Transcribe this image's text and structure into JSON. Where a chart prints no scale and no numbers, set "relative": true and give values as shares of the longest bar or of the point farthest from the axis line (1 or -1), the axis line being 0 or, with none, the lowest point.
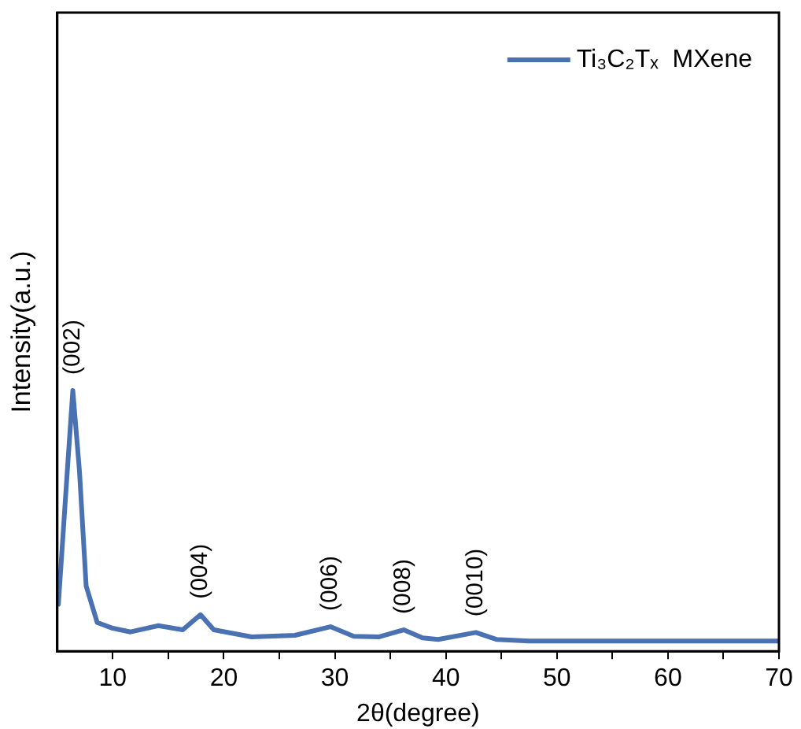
{
  "chart_data": {
    "type": "line",
    "xlabel": "2θ(degree)",
    "ylabel": "Intensity(a.u.)",
    "relative": true,
    "x": [
      5.1,
      5.9,
      6.4,
      7.0,
      7.6,
      8.6,
      10.0,
      11.6,
      14.1,
      16.3,
      17.9,
      19.1,
      22.5,
      26.4,
      29.6,
      31.7,
      34.0,
      36.2,
      37.9,
      39.3,
      42.7,
      44.6,
      47.5,
      55,
      62,
      70
    ],
    "series": [
      {
        "name": "Ti₃C₂Tₓ  MXene",
        "color": "#4a72b2",
        "values": [
          0.18,
          0.69,
          1.0,
          0.69,
          0.25,
          0.11,
          0.088,
          0.074,
          0.098,
          0.082,
          0.14,
          0.082,
          0.055,
          0.061,
          0.094,
          0.057,
          0.055,
          0.082,
          0.051,
          0.045,
          0.072,
          0.045,
          0.039,
          0.039,
          0.039,
          0.039
        ]
      }
    ],
    "xlim": [
      5,
      70
    ],
    "xticks": [
      10,
      {
        "value": 15,
        "label": null
      },
      20,
      {
        "value": 25,
        "label": null
      },
      30,
      {
        "value": 35,
        "label": null
      },
      40,
      {
        "value": 45,
        "label": null
      },
      50,
      {
        "value": 55,
        "label": null
      },
      60,
      {
        "value": 65,
        "label": null
      },
      70
    ],
    "annotations": [
      {
        "text": "(002)",
        "x": 6.4,
        "y": 1.0
      },
      {
        "text": "(004)",
        "x": 17.9,
        "y": 0.14
      },
      {
        "text": "(006)",
        "x": 29.6,
        "y": 0.094
      },
      {
        "text": "(008)",
        "x": 36.2,
        "y": 0.082
      },
      {
        "text": "(0010)",
        "x": 42.7,
        "y": 0.072
      }
    ],
    "legend": "top right",
    "grid": false,
    "marker": "none",
    "line_style": "solid"
  }
}
